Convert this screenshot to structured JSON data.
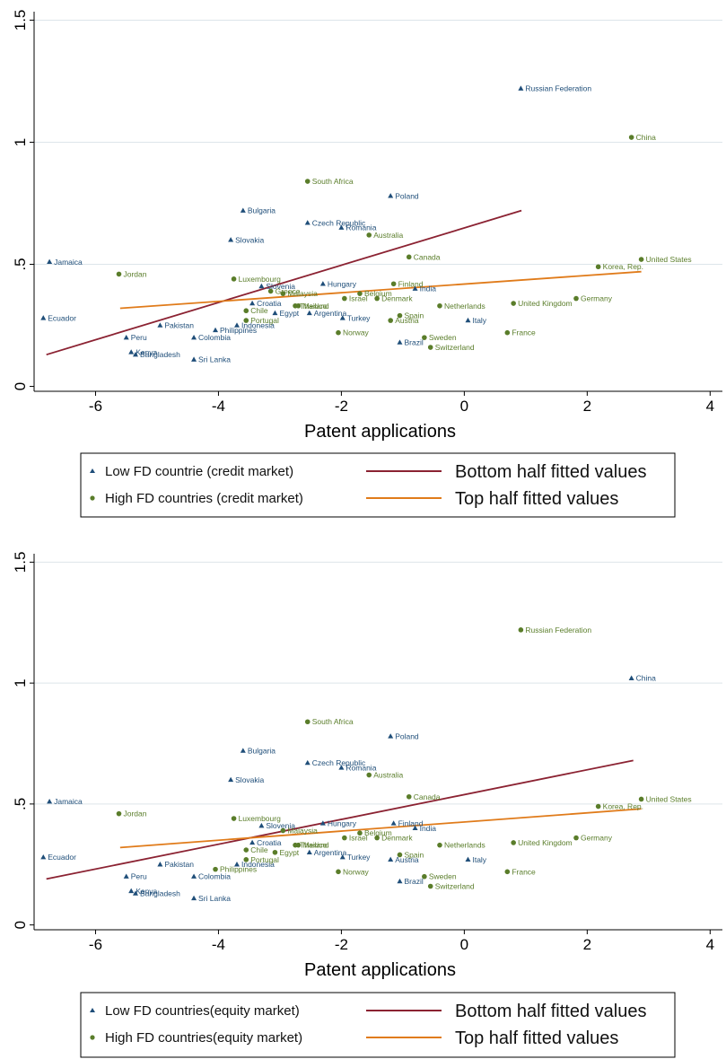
{
  "colors": {
    "low": "#1f4e79",
    "high": "#5a7d2a",
    "bottom_fit": "#8b2232",
    "top_fit": "#e07b1a",
    "grid": "#dde5ea",
    "axis": "#000000"
  },
  "chart_data": [
    {
      "type": "scatter",
      "xlabel": "Patent applications",
      "ylabel": "",
      "xlim": [
        -7,
        4.2
      ],
      "ylim": [
        -0.02,
        1.52
      ],
      "xticks": [
        -6,
        -4,
        -2,
        0,
        2,
        4
      ],
      "xtick_labels": [
        "-6",
        "-4",
        "-2",
        "0",
        "2",
        "4"
      ],
      "yticks": [
        0,
        0.5,
        1,
        1.5
      ],
      "ytick_labels": [
        "0",
        ".5",
        "1",
        "1.5"
      ],
      "legend": {
        "low_label": "Low FD countrie (credit market)",
        "high_label": "High FD countries (credit market)",
        "bottom_label": "Bottom half fitted values",
        "top_label": "Top half fitted values"
      },
      "fit_lines": {
        "bottom": {
          "x": [
            -6.8,
            0.93
          ],
          "y": [
            0.13,
            0.72
          ]
        },
        "top": {
          "x": [
            -5.6,
            2.88
          ],
          "y": [
            0.32,
            0.47
          ]
        }
      },
      "series": [
        {
          "name": "Low FD",
          "points": [
            {
              "label": "Russian Federation",
              "x": 0.92,
              "y": 1.22
            },
            {
              "label": "Poland",
              "x": -1.2,
              "y": 0.78
            },
            {
              "label": "Bulgaria",
              "x": -3.6,
              "y": 0.72
            },
            {
              "label": "Czech Republic",
              "x": -2.55,
              "y": 0.67
            },
            {
              "label": "Romania",
              "x": -2.0,
              "y": 0.65
            },
            {
              "label": "Slovakia",
              "x": -3.8,
              "y": 0.6
            },
            {
              "label": "Jamaica",
              "x": -6.75,
              "y": 0.51
            },
            {
              "label": "Hungary",
              "x": -2.3,
              "y": 0.42
            },
            {
              "label": "India",
              "x": -0.8,
              "y": 0.4
            },
            {
              "label": "Slovenia",
              "x": -3.3,
              "y": 0.41
            },
            {
              "label": "Croatia",
              "x": -3.45,
              "y": 0.34
            },
            {
              "label": "Egypt",
              "x": -3.08,
              "y": 0.3
            },
            {
              "label": "Argentina",
              "x": -2.52,
              "y": 0.3
            },
            {
              "label": "Turkey",
              "x": -1.98,
              "y": 0.28
            },
            {
              "label": "Ecuador",
              "x": -6.85,
              "y": 0.28
            },
            {
              "label": "Pakistan",
              "x": -4.95,
              "y": 0.25
            },
            {
              "label": "Philippines",
              "x": -4.05,
              "y": 0.23
            },
            {
              "label": "Indonesia",
              "x": -3.7,
              "y": 0.25
            },
            {
              "label": "Colombia",
              "x": -4.4,
              "y": 0.2
            },
            {
              "label": "Peru",
              "x": -5.5,
              "y": 0.2
            },
            {
              "label": "Kenya",
              "x": -5.42,
              "y": 0.14
            },
            {
              "label": "Bangladesh",
              "x": -5.35,
              "y": 0.13
            },
            {
              "label": "Sri Lanka",
              "x": -4.4,
              "y": 0.11
            },
            {
              "label": "Brazil",
              "x": -1.05,
              "y": 0.18
            },
            {
              "label": "Italy",
              "x": 0.06,
              "y": 0.27
            }
          ]
        },
        {
          "name": "High FD",
          "points": [
            {
              "label": "China",
              "x": 2.72,
              "y": 1.02
            },
            {
              "label": "South Africa",
              "x": -2.55,
              "y": 0.84
            },
            {
              "label": "Australia",
              "x": -1.55,
              "y": 0.62
            },
            {
              "label": "Canada",
              "x": -0.9,
              "y": 0.53
            },
            {
              "label": "United States",
              "x": 2.88,
              "y": 0.52
            },
            {
              "label": "Korea, Rep.",
              "x": 2.18,
              "y": 0.49
            },
            {
              "label": "Jordan",
              "x": -5.62,
              "y": 0.46
            },
            {
              "label": "Luxembourg",
              "x": -3.75,
              "y": 0.44
            },
            {
              "label": "Finland",
              "x": -1.15,
              "y": 0.42
            },
            {
              "label": "Malaysia",
              "x": -2.95,
              "y": 0.38
            },
            {
              "label": "Greece",
              "x": -3.15,
              "y": 0.39
            },
            {
              "label": "Belgium",
              "x": -1.7,
              "y": 0.38
            },
            {
              "label": "Israel",
              "x": -1.95,
              "y": 0.36
            },
            {
              "label": "Denmark",
              "x": -1.42,
              "y": 0.36
            },
            {
              "label": "Germany",
              "x": 1.82,
              "y": 0.36
            },
            {
              "label": "Thailand",
              "x": -2.75,
              "y": 0.33
            },
            {
              "label": "Mexico",
              "x": -2.7,
              "y": 0.33
            },
            {
              "label": "Netherlands",
              "x": -0.4,
              "y": 0.33
            },
            {
              "label": "United Kingdom",
              "x": 0.8,
              "y": 0.34
            },
            {
              "label": "Chile",
              "x": -3.55,
              "y": 0.31
            },
            {
              "label": "Spain",
              "x": -1.05,
              "y": 0.29
            },
            {
              "label": "Portugal",
              "x": -3.55,
              "y": 0.27
            },
            {
              "label": "Austria",
              "x": -1.2,
              "y": 0.27
            },
            {
              "label": "Norway",
              "x": -2.05,
              "y": 0.22
            },
            {
              "label": "France",
              "x": 0.7,
              "y": 0.22
            },
            {
              "label": "Sweden",
              "x": -0.65,
              "y": 0.2
            },
            {
              "label": "Switzerland",
              "x": -0.55,
              "y": 0.16
            }
          ]
        }
      ]
    },
    {
      "type": "scatter",
      "xlabel": "Patent applications",
      "ylabel": "",
      "xlim": [
        -7,
        4.2
      ],
      "ylim": [
        -0.02,
        1.52
      ],
      "xticks": [
        -6,
        -4,
        -2,
        0,
        2,
        4
      ],
      "xtick_labels": [
        "-6",
        "-4",
        "-2",
        "0",
        "2",
        "4"
      ],
      "yticks": [
        0,
        0.5,
        1,
        1.5
      ],
      "ytick_labels": [
        "0",
        ".5",
        "1",
        "1.5"
      ],
      "legend": {
        "low_label": "Low FD countries(equity market)",
        "high_label": "High FD countries(equity market)",
        "bottom_label": "Bottom half fitted values",
        "top_label": "Top half fitted values"
      },
      "fit_lines": {
        "bottom": {
          "x": [
            -6.8,
            2.75
          ],
          "y": [
            0.19,
            0.68
          ]
        },
        "top": {
          "x": [
            -5.6,
            2.88
          ],
          "y": [
            0.32,
            0.48
          ]
        }
      },
      "series": [
        {
          "name": "Low FD",
          "points": [
            {
              "label": "China",
              "x": 2.72,
              "y": 1.02
            },
            {
              "label": "Poland",
              "x": -1.2,
              "y": 0.78
            },
            {
              "label": "Bulgaria",
              "x": -3.6,
              "y": 0.72
            },
            {
              "label": "Czech Republic",
              "x": -2.55,
              "y": 0.67
            },
            {
              "label": "Romania",
              "x": -2.0,
              "y": 0.65
            },
            {
              "label": "Slovakia",
              "x": -3.8,
              "y": 0.6
            },
            {
              "label": "Jamaica",
              "x": -6.75,
              "y": 0.51
            },
            {
              "label": "Hungary",
              "x": -2.3,
              "y": 0.42
            },
            {
              "label": "Finland",
              "x": -1.15,
              "y": 0.42
            },
            {
              "label": "India",
              "x": -0.8,
              "y": 0.4
            },
            {
              "label": "Slovenia",
              "x": -3.3,
              "y": 0.41
            },
            {
              "label": "Croatia",
              "x": -3.45,
              "y": 0.34
            },
            {
              "label": "Argentina",
              "x": -2.52,
              "y": 0.3
            },
            {
              "label": "Turkey",
              "x": -1.98,
              "y": 0.28
            },
            {
              "label": "Austria",
              "x": -1.2,
              "y": 0.27
            },
            {
              "label": "Italy",
              "x": 0.06,
              "y": 0.27
            },
            {
              "label": "Ecuador",
              "x": -6.85,
              "y": 0.28
            },
            {
              "label": "Pakistan",
              "x": -4.95,
              "y": 0.25
            },
            {
              "label": "Indonesia",
              "x": -3.7,
              "y": 0.25
            },
            {
              "label": "Colombia",
              "x": -4.4,
              "y": 0.2
            },
            {
              "label": "Peru",
              "x": -5.5,
              "y": 0.2
            },
            {
              "label": "Kenya",
              "x": -5.42,
              "y": 0.14
            },
            {
              "label": "Bangladesh",
              "x": -5.35,
              "y": 0.13
            },
            {
              "label": "Sri Lanka",
              "x": -4.4,
              "y": 0.11
            },
            {
              "label": "Brazil",
              "x": -1.05,
              "y": 0.18
            }
          ]
        },
        {
          "name": "High FD",
          "points": [
            {
              "label": "Russian Federation",
              "x": 0.92,
              "y": 1.22
            },
            {
              "label": "South Africa",
              "x": -2.55,
              "y": 0.84
            },
            {
              "label": "Australia",
              "x": -1.55,
              "y": 0.62
            },
            {
              "label": "Canada",
              "x": -0.9,
              "y": 0.53
            },
            {
              "label": "United States",
              "x": 2.88,
              "y": 0.52
            },
            {
              "label": "Korea, Rep.",
              "x": 2.18,
              "y": 0.49
            },
            {
              "label": "Jordan",
              "x": -5.62,
              "y": 0.46
            },
            {
              "label": "Luxembourg",
              "x": -3.75,
              "y": 0.44
            },
            {
              "label": "Malaysia",
              "x": -2.95,
              "y": 0.39
            },
            {
              "label": "Belgium",
              "x": -1.7,
              "y": 0.38
            },
            {
              "label": "Israel",
              "x": -1.95,
              "y": 0.36
            },
            {
              "label": "Denmark",
              "x": -1.42,
              "y": 0.36
            },
            {
              "label": "Germany",
              "x": 1.82,
              "y": 0.36
            },
            {
              "label": "Thailand",
              "x": -2.75,
              "y": 0.33
            },
            {
              "label": "Mexico",
              "x": -2.7,
              "y": 0.33
            },
            {
              "label": "Netherlands",
              "x": -0.4,
              "y": 0.33
            },
            {
              "label": "United Kingdom",
              "x": 0.8,
              "y": 0.34
            },
            {
              "label": "Chile",
              "x": -3.55,
              "y": 0.31
            },
            {
              "label": "Egypt",
              "x": -3.08,
              "y": 0.3
            },
            {
              "label": "Spain",
              "x": -1.05,
              "y": 0.29
            },
            {
              "label": "Portugal",
              "x": -3.55,
              "y": 0.27
            },
            {
              "label": "Philippines",
              "x": -4.05,
              "y": 0.23
            },
            {
              "label": "Norway",
              "x": -2.05,
              "y": 0.22
            },
            {
              "label": "France",
              "x": 0.7,
              "y": 0.22
            },
            {
              "label": "Sweden",
              "x": -0.65,
              "y": 0.2
            },
            {
              "label": "Switzerland",
              "x": -0.55,
              "y": 0.16
            }
          ]
        }
      ]
    }
  ]
}
